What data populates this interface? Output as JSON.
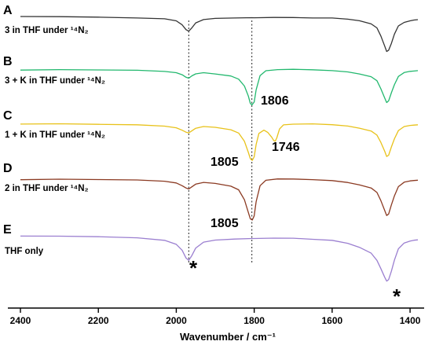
{
  "chart_data": {
    "type": "line",
    "title": "",
    "xlabel": "Wavenumber / cm⁻¹",
    "ylabel": "",
    "xlim": [
      2400,
      1380
    ],
    "x_reversed": true,
    "xticks": [
      2400,
      2200,
      2000,
      1800,
      1600,
      1400
    ],
    "reference_lines": [
      1968,
      1806
    ],
    "series": [
      {
        "name": "3 in THF under ¹⁴N₂",
        "letter": "A",
        "color": "#333333",
        "x": [
          2400,
          2300,
          2200,
          2100,
          2030,
          2000,
          1985,
          1975,
          1968,
          1960,
          1950,
          1930,
          1900,
          1850,
          1806,
          1800,
          1750,
          1700,
          1650,
          1600,
          1560,
          1530,
          1500,
          1485,
          1475,
          1465,
          1460,
          1455,
          1448,
          1440,
          1430,
          1415,
          1400,
          1390,
          1380
        ],
        "y": [
          0.02,
          0.02,
          0.03,
          0.05,
          0.07,
          0.12,
          0.22,
          0.34,
          0.38,
          0.3,
          0.18,
          0.1,
          0.07,
          0.06,
          0.05,
          0.05,
          0.04,
          0.04,
          0.05,
          0.05,
          0.08,
          0.12,
          0.2,
          0.3,
          0.5,
          0.75,
          0.88,
          0.85,
          0.68,
          0.45,
          0.25,
          0.16,
          0.12,
          0.1,
          0.09
        ]
      },
      {
        "name": "3 + K in THF under ¹⁴N₂",
        "letter": "B",
        "color": "#22b86e",
        "x": [
          2400,
          2300,
          2200,
          2100,
          2030,
          2000,
          1985,
          1975,
          1968,
          1960,
          1950,
          1930,
          1900,
          1860,
          1840,
          1825,
          1815,
          1810,
          1806,
          1800,
          1795,
          1785,
          1770,
          1740,
          1700,
          1650,
          1600,
          1560,
          1530,
          1500,
          1485,
          1475,
          1465,
          1460,
          1455,
          1448,
          1440,
          1430,
          1415,
          1400,
          1390,
          1380
        ],
        "y": [
          0.06,
          0.05,
          0.06,
          0.07,
          0.1,
          0.13,
          0.18,
          0.24,
          0.26,
          0.2,
          0.15,
          0.12,
          0.15,
          0.2,
          0.28,
          0.45,
          0.7,
          0.88,
          0.92,
          0.85,
          0.55,
          0.2,
          0.08,
          0.05,
          0.04,
          0.05,
          0.07,
          0.1,
          0.15,
          0.22,
          0.32,
          0.52,
          0.75,
          0.86,
          0.82,
          0.62,
          0.42,
          0.22,
          0.12,
          0.09,
          0.08,
          0.07
        ]
      },
      {
        "name": "1 + K in THF under ¹⁴N₂",
        "letter": "C",
        "color": "#e8c21a",
        "x": [
          2400,
          2300,
          2200,
          2100,
          2030,
          2000,
          1985,
          1975,
          1968,
          1960,
          1950,
          1930,
          1900,
          1860,
          1840,
          1825,
          1815,
          1810,
          1805,
          1800,
          1795,
          1788,
          1775,
          1765,
          1755,
          1750,
          1746,
          1742,
          1735,
          1725,
          1700,
          1650,
          1600,
          1560,
          1530,
          1500,
          1485,
          1475,
          1465,
          1460,
          1455,
          1448,
          1440,
          1430,
          1415,
          1400,
          1390,
          1380
        ],
        "y": [
          0.06,
          0.05,
          0.06,
          0.07,
          0.1,
          0.14,
          0.2,
          0.25,
          0.27,
          0.22,
          0.16,
          0.12,
          0.14,
          0.2,
          0.28,
          0.48,
          0.75,
          0.9,
          0.94,
          0.85,
          0.55,
          0.28,
          0.2,
          0.26,
          0.38,
          0.46,
          0.48,
          0.4,
          0.18,
          0.08,
          0.06,
          0.05,
          0.07,
          0.1,
          0.15,
          0.22,
          0.32,
          0.5,
          0.72,
          0.85,
          0.82,
          0.62,
          0.42,
          0.22,
          0.12,
          0.09,
          0.08,
          0.07
        ]
      },
      {
        "name": "2 in THF under ¹⁴N₂",
        "letter": "D",
        "color": "#8b3a22",
        "x": [
          2400,
          2300,
          2200,
          2100,
          2030,
          2000,
          1985,
          1975,
          1968,
          1960,
          1950,
          1930,
          1900,
          1860,
          1840,
          1825,
          1815,
          1810,
          1805,
          1800,
          1795,
          1785,
          1770,
          1740,
          1700,
          1650,
          1600,
          1560,
          1530,
          1500,
          1485,
          1475,
          1465,
          1460,
          1455,
          1448,
          1440,
          1430,
          1415,
          1400,
          1390,
          1380
        ],
        "y": [
          0.06,
          0.05,
          0.06,
          0.07,
          0.1,
          0.14,
          0.2,
          0.25,
          0.27,
          0.22,
          0.16,
          0.12,
          0.14,
          0.2,
          0.28,
          0.5,
          0.78,
          0.92,
          0.95,
          0.86,
          0.55,
          0.2,
          0.08,
          0.05,
          0.05,
          0.06,
          0.08,
          0.12,
          0.17,
          0.24,
          0.34,
          0.52,
          0.74,
          0.85,
          0.82,
          0.62,
          0.42,
          0.22,
          0.12,
          0.09,
          0.08,
          0.07
        ]
      },
      {
        "name": "THF only",
        "letter": "E",
        "color": "#9b7fd0",
        "x": [
          2400,
          2300,
          2200,
          2100,
          2030,
          2000,
          1985,
          1975,
          1968,
          1960,
          1950,
          1930,
          1900,
          1850,
          1806,
          1800,
          1750,
          1700,
          1650,
          1600,
          1560,
          1530,
          1500,
          1485,
          1475,
          1465,
          1460,
          1455,
          1448,
          1440,
          1430,
          1415,
          1400,
          1390,
          1380
        ],
        "y": [
          0.06,
          0.06,
          0.07,
          0.09,
          0.14,
          0.22,
          0.34,
          0.5,
          0.55,
          0.45,
          0.3,
          0.18,
          0.14,
          0.12,
          0.11,
          0.11,
          0.1,
          0.1,
          0.12,
          0.14,
          0.2,
          0.28,
          0.4,
          0.55,
          0.72,
          0.9,
          0.98,
          0.95,
          0.78,
          0.55,
          0.32,
          0.2,
          0.16,
          0.14,
          0.13
        ]
      }
    ],
    "peak_labels": [
      "1806",
      "1805",
      "1746",
      "1805"
    ],
    "peak_marker": "*"
  }
}
